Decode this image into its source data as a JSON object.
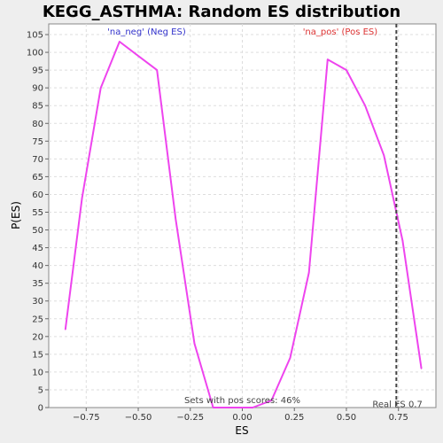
{
  "chart_data": {
    "type": "line",
    "title": "KEGG_ASTHMA: Random ES distribution",
    "xlabel": "ES",
    "ylabel": "P(ES)",
    "xlim": [
      -0.93,
      0.93
    ],
    "ylim": [
      0,
      108
    ],
    "x_ticks": [
      -0.75,
      -0.5,
      -0.25,
      0.0,
      0.25,
      0.5,
      0.75
    ],
    "x_tick_labels": [
      "−0.75",
      "−0.50",
      "−0.25",
      "0.00",
      "0.25",
      "0.50",
      "0.75"
    ],
    "y_ticks": [
      0,
      5,
      10,
      15,
      20,
      25,
      30,
      35,
      40,
      45,
      50,
      55,
      60,
      65,
      70,
      75,
      80,
      85,
      90,
      95,
      100,
      105
    ],
    "grid": true,
    "series": [
      {
        "points": [
          [
            -0.85,
            22
          ],
          [
            -0.77,
            59
          ],
          [
            -0.68,
            90
          ],
          [
            -0.59,
            103
          ],
          [
            -0.5,
            99
          ],
          [
            -0.41,
            95
          ],
          [
            -0.32,
            53
          ],
          [
            -0.23,
            18
          ],
          [
            -0.14,
            0
          ],
          [
            -0.05,
            0
          ],
          [
            0.05,
            0
          ],
          [
            0.14,
            2
          ],
          [
            0.23,
            14
          ],
          [
            0.32,
            38
          ],
          [
            0.41,
            98
          ],
          [
            0.5,
            95
          ],
          [
            0.59,
            85
          ],
          [
            0.68,
            71
          ],
          [
            0.77,
            47
          ],
          [
            0.86,
            11
          ]
        ],
        "color": "#ee44ee"
      }
    ],
    "real_es": {
      "x": 0.74,
      "label": "Real ES 0.7"
    },
    "annotations": [
      {
        "text": "'na_neg' (Neg ES)",
        "x": -0.46,
        "y": 105,
        "color": "#3333cc"
      },
      {
        "text": "'na_pos' (Pos ES)",
        "x": 0.47,
        "y": 105,
        "color": "#dd3333"
      },
      {
        "text": "Sets with pos scores: 46%",
        "x": 0.0,
        "y": 1.2,
        "color": "#444444"
      }
    ]
  }
}
